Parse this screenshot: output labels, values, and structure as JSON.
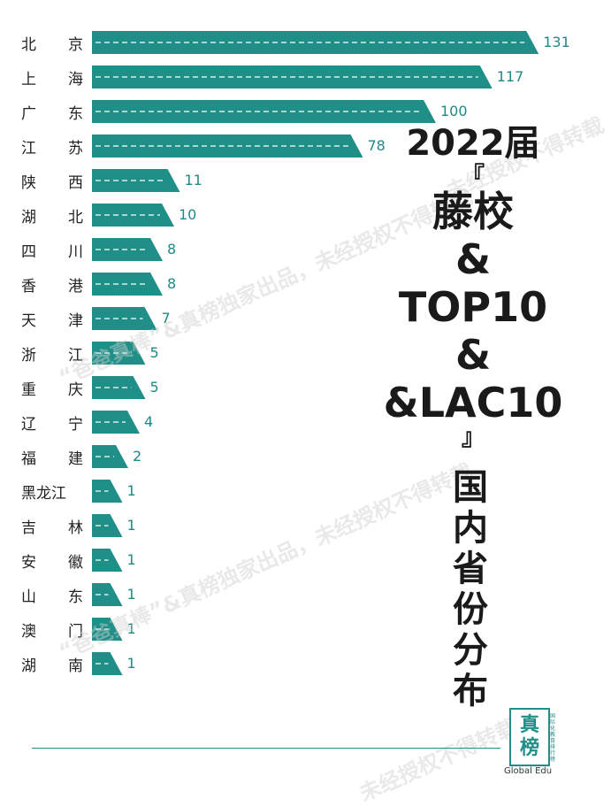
{
  "chart_data": {
    "type": "bar",
    "orientation": "horizontal",
    "title": "2022届",
    "title_lines": [
      "『",
      "藤校",
      "&",
      "TOP10",
      "&",
      "&LAC10",
      "』"
    ],
    "subtitle_vertical": "国内省份分布",
    "categories": [
      "北 京",
      "上 海",
      "广 东",
      "江 苏",
      "陕 西",
      "湖 北",
      "四 川",
      "香 港",
      "天 津",
      "浙 江",
      "重 庆",
      "辽 宁",
      "福 建",
      "黑龙江",
      "吉 林",
      "安 徽",
      "山 东",
      "澳 门",
      "湖 南"
    ],
    "values": [
      131,
      117,
      100,
      78,
      11,
      10,
      8,
      8,
      7,
      5,
      5,
      4,
      2,
      1,
      1,
      1,
      1,
      1,
      1
    ],
    "value_labels": [
      "131",
      "117",
      "100",
      "78",
      "11",
      "10",
      "8",
      "8",
      "7",
      "5",
      "5",
      "4",
      "2",
      "1",
      "1",
      "1",
      "1",
      "1",
      "1"
    ],
    "bar_color": "#1f8f88",
    "label_color": "#1e8a85",
    "legend": "none",
    "grid": false
  },
  "watermarks": [
    "未经授权不得转载",
    "“爸爸真棒”&真榜独家出品，未经授权不得转载",
    "“爸爸真棒”&真榜独家出品，未经授权不得转载",
    "未经授权不得转载"
  ],
  "logo": {
    "main_chars": [
      "真",
      "榜"
    ],
    "side_text": "国际化教育排行榜",
    "english": "Global Edu"
  }
}
